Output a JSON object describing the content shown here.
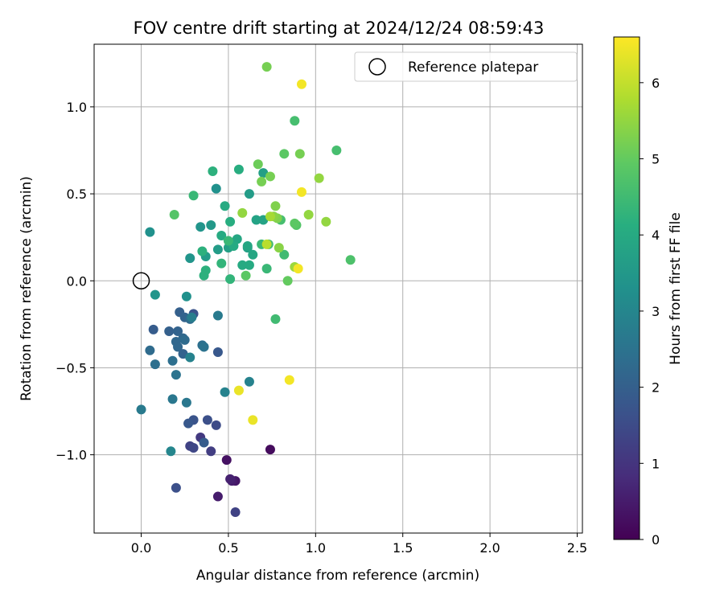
{
  "chart_data": {
    "type": "scatter",
    "title": "FOV centre drift starting at 2024/12/24 08:59:43",
    "xlabel": "Angular distance from reference (arcmin)",
    "ylabel": "Rotation from reference (arcmin)",
    "xlim": [
      -0.27,
      2.53
    ],
    "ylim": [
      -1.45,
      1.36
    ],
    "xticks": [
      0.0,
      0.5,
      1.0,
      1.5,
      2.0,
      2.5
    ],
    "xtick_labels": [
      "0.0",
      "0.5",
      "1.0",
      "1.5",
      "2.0",
      "2.5"
    ],
    "yticks": [
      -1.0,
      -0.5,
      0.0,
      0.5,
      1.0
    ],
    "ytick_labels": [
      "−1.0",
      "−0.5",
      "0.0",
      "0.5",
      "1.0"
    ],
    "grid": true,
    "legend": {
      "position": "top-right",
      "entries": [
        "Reference platepar"
      ]
    },
    "reference_point": {
      "x": 0.0,
      "y": 0.0,
      "label": "Reference platepar"
    },
    "colorbar": {
      "label": "Hours from first FF file",
      "range": [
        0,
        6.6
      ],
      "ticks": [
        0,
        1,
        2,
        3,
        4,
        5,
        6
      ],
      "tick_labels": [
        "0",
        "1",
        "2",
        "3",
        "4",
        "5",
        "6"
      ],
      "colormap": "viridis"
    },
    "points": [
      [
        0.44,
        -1.24,
        0.5
      ],
      [
        0.49,
        -1.03,
        0.3
      ],
      [
        0.54,
        -1.15,
        0.4
      ],
      [
        0.52,
        -1.15,
        0.5
      ],
      [
        0.51,
        -1.14,
        0.6
      ],
      [
        0.74,
        -0.97,
        0.2
      ],
      [
        0.54,
        -1.33,
        1.3
      ],
      [
        0.4,
        -0.98,
        1.2
      ],
      [
        0.34,
        -0.9,
        1.1
      ],
      [
        0.28,
        -0.95,
        1.3
      ],
      [
        0.3,
        -0.96,
        1.4
      ],
      [
        0.2,
        -1.19,
        1.6
      ],
      [
        0.43,
        -0.83,
        1.5
      ],
      [
        0.38,
        -0.8,
        1.6
      ],
      [
        0.3,
        -0.8,
        1.7
      ],
      [
        0.27,
        -0.82,
        1.8
      ],
      [
        0.36,
        -0.93,
        1.9
      ],
      [
        0.44,
        -0.41,
        1.8
      ],
      [
        0.3,
        -0.19,
        1.7
      ],
      [
        0.22,
        -0.18,
        2.0
      ],
      [
        0.07,
        -0.28,
        1.9
      ],
      [
        0.16,
        -0.29,
        2.0
      ],
      [
        0.21,
        -0.29,
        2.1
      ],
      [
        0.24,
        -0.33,
        2.2
      ],
      [
        0.2,
        -0.35,
        2.2
      ],
      [
        0.25,
        -0.21,
        2.1
      ],
      [
        0.28,
        -0.22,
        2.3
      ],
      [
        0.05,
        -0.4,
        2.3
      ],
      [
        0.08,
        -0.48,
        2.4
      ],
      [
        0.18,
        -0.46,
        2.4
      ],
      [
        0.21,
        -0.38,
        2.2
      ],
      [
        0.24,
        -0.42,
        2.1
      ],
      [
        0.25,
        -0.34,
        2.3
      ],
      [
        0.35,
        -0.37,
        2.4
      ],
      [
        0.36,
        -0.38,
        2.5
      ],
      [
        0.2,
        -0.54,
        2.5
      ],
      [
        0.18,
        -0.68,
        2.6
      ],
      [
        0.26,
        -0.7,
        2.6
      ],
      [
        0.0,
        -0.74,
        2.7
      ],
      [
        0.17,
        -0.98,
        3.0
      ],
      [
        0.28,
        -0.44,
        2.9
      ],
      [
        0.29,
        -0.21,
        2.8
      ],
      [
        0.44,
        -0.2,
        2.7
      ],
      [
        0.48,
        -0.64,
        2.9
      ],
      [
        0.62,
        -0.58,
        2.9
      ],
      [
        0.26,
        -0.09,
        3.3
      ],
      [
        0.08,
        -0.08,
        3.4
      ],
      [
        0.05,
        0.28,
        3.3
      ],
      [
        0.28,
        0.13,
        3.4
      ],
      [
        0.34,
        0.31,
        3.4
      ],
      [
        0.4,
        0.32,
        3.5
      ],
      [
        0.43,
        0.53,
        3.3
      ],
      [
        0.37,
        0.14,
        3.6
      ],
      [
        0.44,
        0.18,
        3.6
      ],
      [
        0.5,
        0.19,
        3.7
      ],
      [
        0.61,
        0.19,
        3.7
      ],
      [
        0.62,
        0.5,
        3.6
      ],
      [
        0.66,
        0.35,
        3.8
      ],
      [
        0.7,
        0.35,
        3.8
      ],
      [
        0.7,
        0.62,
        3.7
      ],
      [
        0.61,
        0.2,
        3.9
      ],
      [
        0.64,
        0.15,
        3.9
      ],
      [
        0.58,
        0.09,
        4.0
      ],
      [
        0.62,
        0.09,
        4.0
      ],
      [
        0.55,
        0.24,
        3.9
      ],
      [
        0.46,
        0.26,
        4.0
      ],
      [
        0.48,
        0.43,
        4.0
      ],
      [
        0.51,
        0.34,
        4.1
      ],
      [
        0.53,
        0.2,
        4.0
      ],
      [
        0.56,
        0.64,
        4.1
      ],
      [
        0.41,
        0.63,
        4.2
      ],
      [
        0.35,
        0.17,
        4.2
      ],
      [
        0.37,
        0.06,
        4.2
      ],
      [
        0.36,
        0.03,
        4.2
      ],
      [
        0.46,
        0.1,
        4.3
      ],
      [
        0.51,
        0.01,
        4.3
      ],
      [
        0.5,
        0.23,
        4.4
      ],
      [
        0.3,
        0.49,
        4.4
      ],
      [
        0.72,
        0.07,
        4.4
      ],
      [
        0.69,
        0.21,
        4.4
      ],
      [
        0.73,
        0.21,
        4.5
      ],
      [
        0.77,
        -0.22,
        4.5
      ],
      [
        0.8,
        0.35,
        4.6
      ],
      [
        0.82,
        0.15,
        4.5
      ],
      [
        0.88,
        0.92,
        4.6
      ],
      [
        1.12,
        0.75,
        4.6
      ],
      [
        1.2,
        0.12,
        4.7
      ],
      [
        0.89,
        0.32,
        4.8
      ],
      [
        0.88,
        0.33,
        4.9
      ],
      [
        0.82,
        0.73,
        4.9
      ],
      [
        0.19,
        0.38,
        4.8
      ],
      [
        0.6,
        0.03,
        4.9
      ],
      [
        0.84,
        0.0,
        5.0
      ],
      [
        0.67,
        0.67,
        5.1
      ],
      [
        0.72,
        1.23,
        5.2
      ],
      [
        0.69,
        0.57,
        5.2
      ],
      [
        0.74,
        0.6,
        5.2
      ],
      [
        0.77,
        0.43,
        5.3
      ],
      [
        0.78,
        0.36,
        5.3
      ],
      [
        0.76,
        0.37,
        5.4
      ],
      [
        0.79,
        0.19,
        5.4
      ],
      [
        0.91,
        0.73,
        5.2
      ],
      [
        0.96,
        0.38,
        5.5
      ],
      [
        1.02,
        0.59,
        5.5
      ],
      [
        1.06,
        0.34,
        5.5
      ],
      [
        0.88,
        0.08,
        5.6
      ],
      [
        0.58,
        0.39,
        5.5
      ],
      [
        0.72,
        0.21,
        5.9
      ],
      [
        0.74,
        0.37,
        5.7
      ],
      [
        0.92,
        1.13,
        6.5
      ],
      [
        0.92,
        0.51,
        6.5
      ],
      [
        0.9,
        0.07,
        6.5
      ],
      [
        0.85,
        -0.57,
        6.5
      ],
      [
        0.56,
        -0.63,
        6.4
      ],
      [
        0.64,
        -0.8,
        6.4
      ]
    ]
  }
}
